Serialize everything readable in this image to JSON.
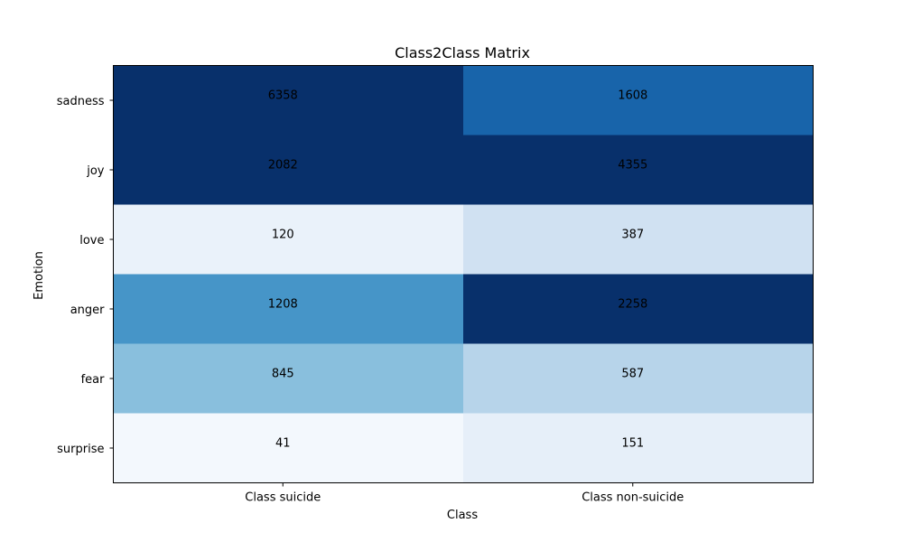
{
  "chart_data": {
    "type": "heatmap",
    "title": "Class2Class Matrix",
    "xlabel": "Class",
    "ylabel": "Emotion",
    "x_categories": [
      "Class suicide",
      "Class non-suicide"
    ],
    "y_categories": [
      "sadness",
      "joy",
      "love",
      "anger",
      "fear",
      "surprise"
    ],
    "values": [
      [
        6358,
        1608
      ],
      [
        2082,
        4355
      ],
      [
        120,
        387
      ],
      [
        1208,
        2258
      ],
      [
        845,
        587
      ],
      [
        41,
        151
      ]
    ],
    "cell_colors": [
      [
        "#08306b",
        "#1864aa"
      ],
      [
        "#08306b",
        "#08306b"
      ],
      [
        "#eaf2fa",
        "#d0e1f2"
      ],
      [
        "#4695c8",
        "#08306b"
      ],
      [
        "#89bfdd",
        "#b7d4ea"
      ],
      [
        "#f3f8fd",
        "#e6eff9"
      ]
    ],
    "label_colors": [
      [
        "#ffffff",
        "#000000"
      ],
      [
        "#000000",
        "#ffffff"
      ],
      [
        "#000000",
        "#000000"
      ],
      [
        "#000000",
        "#000000"
      ],
      [
        "#000000",
        "#000000"
      ],
      [
        "#000000",
        "#000000"
      ]
    ],
    "colormap": "Blues",
    "grid": false
  }
}
